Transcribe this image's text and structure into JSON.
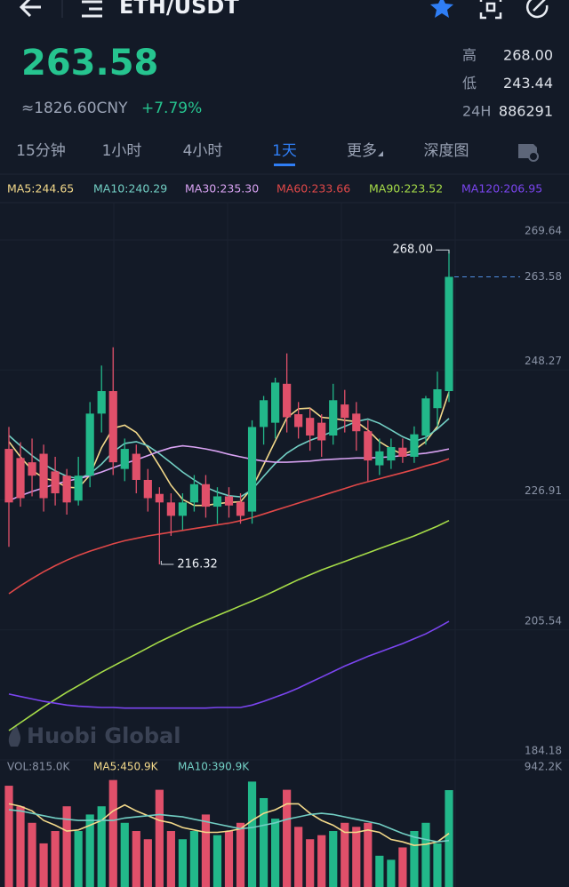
{
  "header": {
    "pair": "ETH/USDT"
  },
  "ticker": {
    "price": "263.58",
    "cny": "≈1826.60CNY",
    "change": "+7.79%",
    "stats": [
      {
        "label": "高",
        "value": "268.00"
      },
      {
        "label": "低",
        "value": "243.44"
      },
      {
        "label": "24H",
        "value": "886291"
      }
    ]
  },
  "tabs": [
    "15分钟",
    "1小时",
    "4小时",
    "1天",
    "更多",
    "深度图"
  ],
  "active_tab": 3,
  "watermark": "Huobi Global",
  "chart_data": {
    "type": "candlestick",
    "up_color": "#22b88a",
    "down_color": "#e0506a",
    "ylim": [
      184.18,
      269.64
    ],
    "yticks": [
      269.64,
      248.27,
      226.91,
      205.54,
      184.18
    ],
    "open": [
      235.3,
      233.8,
      233.1,
      234.5,
      231.6,
      230.9,
      226.8,
      230.9,
      241.1,
      244.8,
      232,
      234.5,
      230.2,
      227.9,
      226.5,
      224.3,
      226.5,
      229.5,
      225.8,
      227.5,
      226.6,
      225,
      238.9,
      239.6,
      246,
      241,
      240.4,
      239.6,
      237.5,
      242.6,
      241.1,
      238.2,
      232.6,
      233.4,
      235.5,
      234,
      237.5,
      242,
      244.8
    ],
    "high": [
      238.9,
      236.4,
      237,
      236,
      234,
      232,
      234,
      243,
      249,
      252,
      237,
      236,
      232,
      229,
      228,
      228,
      231,
      231,
      229,
      229,
      228,
      240,
      244,
      247,
      251,
      243,
      242,
      241,
      246,
      245,
      243,
      240,
      237,
      237,
      237,
      239,
      244,
      248,
      268
    ],
    "low": [
      219.2,
      225.8,
      227.5,
      225,
      226,
      224.5,
      226,
      229,
      238,
      231,
      230,
      228,
      225,
      216.32,
      221,
      222,
      225,
      224,
      223,
      224,
      223,
      223,
      236,
      237,
      238,
      237,
      235,
      234,
      236,
      238,
      235,
      230,
      231,
      232,
      233,
      233,
      236,
      239,
      243
    ],
    "close": [
      226.5,
      227.2,
      230.9,
      227.2,
      228,
      226.5,
      230.9,
      241.1,
      244.8,
      233.1,
      235.3,
      230.2,
      227.2,
      226.5,
      224.3,
      226.5,
      229.5,
      225.8,
      227.5,
      226,
      224.3,
      238.9,
      243.3,
      246.2,
      240.5,
      238.9,
      237.5,
      236.7,
      243.3,
      240.4,
      238.2,
      233.4,
      234.9,
      235.6,
      234,
      237.7,
      243.6,
      245.1,
      263.58
    ],
    "series": [
      {
        "name": "MA5:244.65",
        "color": "#f3d98a",
        "values": [
          236.5,
          234,
          231.8,
          230.5,
          230,
          229,
          228.9,
          231,
          235.5,
          238.7,
          239.2,
          238,
          235.5,
          232.5,
          229.3,
          227,
          226,
          226,
          226.3,
          226.5,
          226.6,
          228.9,
          232.7,
          236.6,
          240.4,
          241.9,
          242,
          240.5,
          240.3,
          240,
          239.8,
          238.4,
          236.5,
          235.3,
          234.4,
          235.1,
          236.5,
          239,
          244.65
        ]
      },
      {
        "name": "MA10:240.29",
        "color": "#72cfc4",
        "values": [
          237.5,
          235.8,
          234.2,
          232.8,
          231.7,
          230.8,
          230.4,
          231.2,
          232.8,
          234.8,
          236.2,
          236.5,
          235.8,
          234.5,
          233,
          231.5,
          230.2,
          229,
          228.2,
          227.6,
          227.4,
          228.6,
          230.8,
          232.9,
          234.6,
          235.8,
          236.7,
          237.4,
          238.2,
          239,
          239.8,
          240.2,
          239.5,
          238.4,
          237.3,
          236.5,
          237.2,
          238.6,
          240.29
        ]
      },
      {
        "name": "MA30:235.30",
        "color": "#d8a2f2",
        "values": [
          226.8,
          227.6,
          228.3,
          228.9,
          229.5,
          230,
          230.4,
          230.9,
          231.5,
          232.2,
          232.9,
          233.5,
          234.2,
          234.9,
          235.5,
          235.8,
          235.6,
          235.3,
          234.9,
          234.4,
          234,
          233.6,
          233.3,
          233.1,
          233.1,
          233.2,
          233.3,
          233.5,
          233.6,
          233.7,
          233.8,
          233.8,
          233.9,
          234,
          234.2,
          234.4,
          234.6,
          234.9,
          235.3
        ]
      },
      {
        "name": "MA60:233.66",
        "color": "#e04848",
        "values": [
          211.5,
          212.8,
          214,
          215.1,
          216.1,
          217,
          217.8,
          218.5,
          219.1,
          219.7,
          220.2,
          220.6,
          221,
          221.3,
          221.6,
          221.9,
          222.2,
          222.5,
          222.8,
          223.1,
          223.5,
          224,
          224.6,
          225.2,
          225.8,
          226.4,
          227,
          227.6,
          228.2,
          228.8,
          229.4,
          229.9,
          230.4,
          230.9,
          231.4,
          231.9,
          232.5,
          233,
          233.66
        ]
      },
      {
        "name": "MA90:223.52",
        "color": "#a6dc48",
        "values": [
          189,
          190.3,
          191.6,
          192.9,
          194.1,
          195.3,
          196.4,
          197.5,
          198.6,
          199.6,
          200.6,
          201.6,
          202.6,
          203.6,
          204.5,
          205.4,
          206.3,
          207.1,
          207.9,
          208.7,
          209.5,
          210.3,
          211.1,
          212,
          212.9,
          213.8,
          214.6,
          215.4,
          216.1,
          216.8,
          217.5,
          218.2,
          218.9,
          219.6,
          220.3,
          221,
          221.8,
          222.6,
          223.52
        ]
      },
      {
        "name": "MA120:206.95",
        "color": "#7b45f0",
        "values": [
          195,
          194.6,
          194.2,
          193.8,
          193.5,
          193.2,
          193,
          192.9,
          192.8,
          192.8,
          192.7,
          192.7,
          192.7,
          192.7,
          192.7,
          192.7,
          192.7,
          192.7,
          192.8,
          192.8,
          192.8,
          193.2,
          193.8,
          194.5,
          195.2,
          196,
          196.9,
          197.8,
          198.7,
          199.6,
          200.4,
          201.2,
          201.9,
          202.6,
          203.3,
          204.1,
          204.9,
          205.9,
          206.95
        ]
      }
    ],
    "annotations": {
      "high": {
        "value": 268,
        "label": "268.00"
      },
      "low": {
        "value": 216.32,
        "label": "216.32"
      },
      "last": {
        "value": 263.58,
        "label": "263.58"
      }
    },
    "volume": {
      "label": "VOL:815.0K",
      "ylim": [
        0,
        942.2
      ],
      "yticks": [
        {
          "value": 942.2,
          "label": "942.2K"
        }
      ],
      "values": [
        852,
        679,
        540,
        367,
        471,
        679,
        471,
        610,
        679,
        900,
        540,
        471,
        402,
        818,
        471,
        402,
        471,
        610,
        436,
        471,
        540,
        887,
        748,
        575,
        818,
        506,
        402,
        436,
        471,
        540,
        506,
        540,
        263,
        229,
        333,
        471,
        540,
        367,
        815.0
      ],
      "series": [
        {
          "name": "MA5:450.9K",
          "color": "#f3d98a",
          "values": [
            700,
            680,
            640,
            560,
            520,
            470,
            480,
            520,
            560,
            640,
            690,
            640,
            600,
            560,
            540,
            500,
            480,
            460,
            460,
            470,
            490,
            560,
            620,
            650,
            700,
            700,
            620,
            560,
            520,
            460,
            460,
            480,
            460,
            400,
            380,
            350,
            360,
            380,
            450.9
          ]
        },
        {
          "name": "MA10:390.9K",
          "color": "#72cfc4",
          "values": [
            650,
            640,
            620,
            600,
            580,
            570,
            560,
            560,
            560,
            560,
            580,
            590,
            600,
            610,
            600,
            590,
            570,
            550,
            530,
            510,
            490,
            500,
            520,
            540,
            570,
            590,
            610,
            620,
            610,
            590,
            570,
            550,
            530,
            490,
            450,
            420,
            400,
            380,
            390.9
          ]
        }
      ]
    }
  }
}
